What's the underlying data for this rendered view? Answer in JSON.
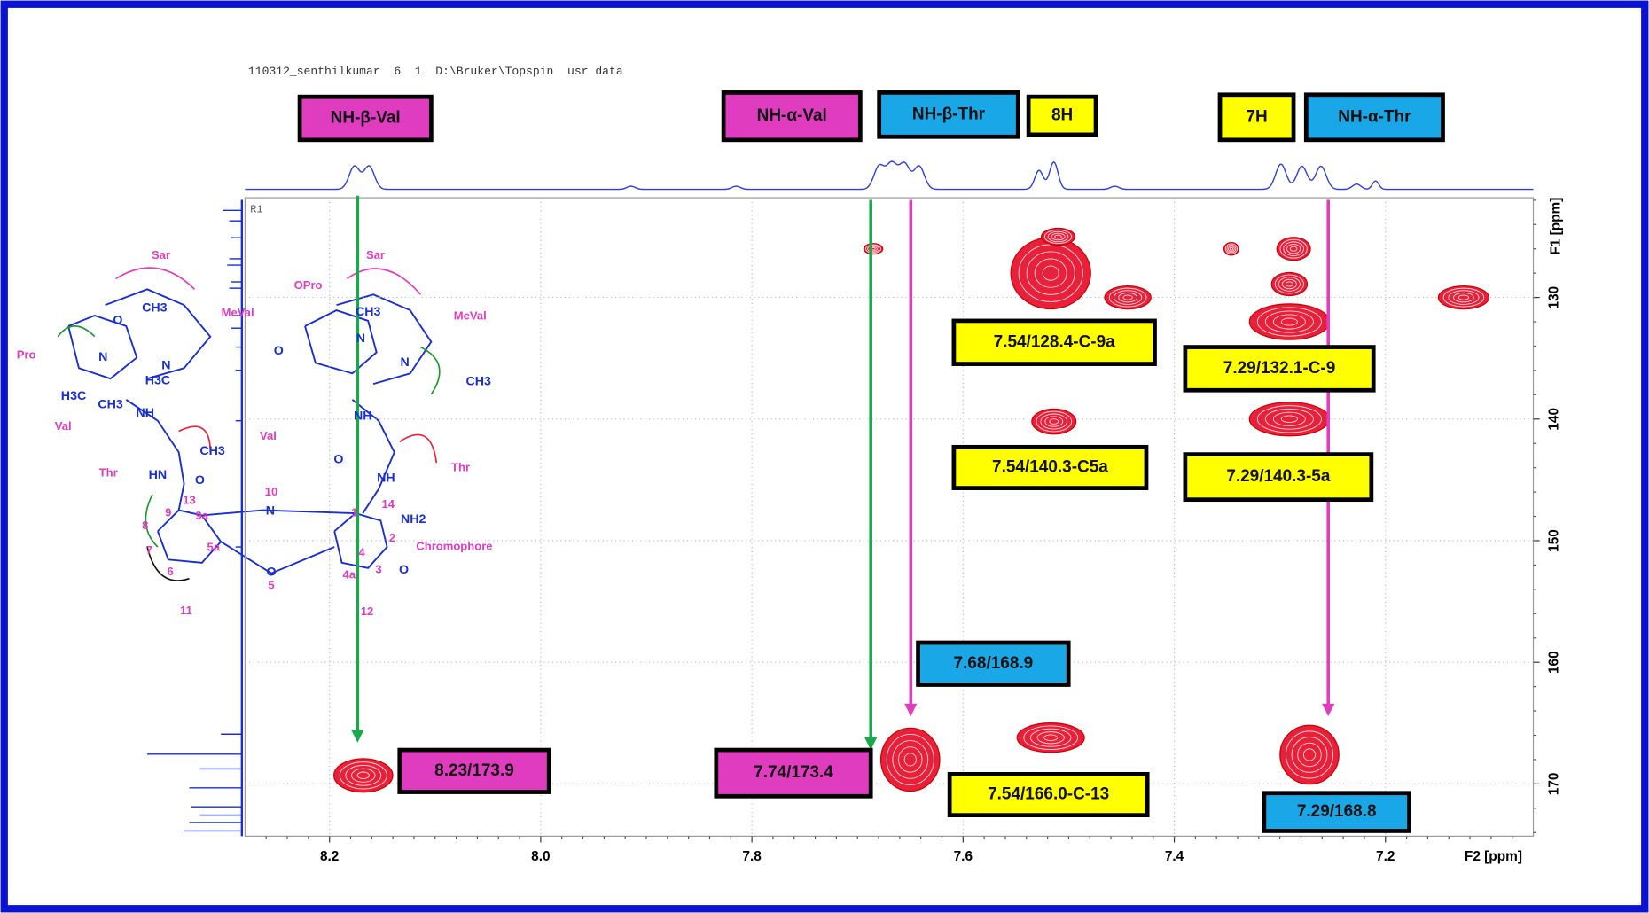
{
  "header": "110312_senthilkumar  6  1  D:\\Bruker\\Topspin  usr data",
  "chart_data": {
    "type": "contour",
    "region_label": "R1",
    "xlabel": "F2 [ppm]",
    "ylabel": "F1 [ppm]",
    "xlim": [
      8.28,
      7.06
    ],
    "ylim": [
      121.8,
      174.3
    ],
    "xticks": [
      8.2,
      {
        "value": 8,
        "label": "8.0"
      },
      7.8,
      7.6,
      7.4,
      7.2
    ],
    "yticks": [
      130,
      140,
      150,
      160,
      170
    ],
    "grid": true,
    "color": "#e8203a",
    "x": [
      8.168,
      7.65,
      7.517,
      7.272,
      7.517,
      7.51,
      7.444,
      7.514,
      7.346,
      7.287,
      7.291,
      7.291,
      7.291,
      7.126,
      7.685
    ],
    "values": [
      169.3,
      168,
      166.2,
      167.6,
      128,
      125,
      130,
      140.2,
      126,
      126,
      128.9,
      132,
      140,
      130,
      126
    ],
    "annotations": [
      {
        "text": "NH-β-Val",
        "color": "#e03cc0"
      },
      {
        "text": "NH-α-Val",
        "color": "#e03cc0"
      },
      {
        "text": "NH-β-Thr",
        "color": "#1aa7e8"
      },
      {
        "text": "8H",
        "color": "#ffff00"
      },
      {
        "text": "7H",
        "color": "#ffff00"
      },
      {
        "text": "NH-α-Thr",
        "color": "#1aa7e8"
      },
      {
        "text": "7.54/128.4-C-9a",
        "color": "#ffff00"
      },
      {
        "text": "7.29/132.1-C-9",
        "color": "#ffff00"
      },
      {
        "text": "7.54/140.3-C5a",
        "color": "#ffff00"
      },
      {
        "text": "7.29/140.3-5a",
        "color": "#ffff00"
      },
      {
        "text": "7.68/168.9",
        "color": "#1aa7e8"
      },
      {
        "text": "8.23/173.9",
        "color": "#e03cc0"
      },
      {
        "text": "7.74/173.4",
        "color": "#e03cc0"
      },
      {
        "text": "7.54/166.0-C-13",
        "color": "#ffff00"
      },
      {
        "text": "7.29/168.8",
        "color": "#1aa7e8"
      }
    ],
    "structure": {
      "residue_labels": [
        "Sar",
        "Pro",
        "Val",
        "Thr",
        "MeVal",
        "Sar",
        "OPro",
        "MeVal",
        "Val",
        "Thr",
        "Chromophore",
        "10",
        "9a",
        "13",
        "9",
        "8",
        "7",
        "5a",
        "6",
        "11",
        "5",
        "4a",
        "4",
        "3",
        "2",
        "1",
        "12",
        "14"
      ],
      "atom_labels": [
        "N",
        "O",
        "O",
        "NH2",
        "NH",
        "HN",
        "NH",
        "NH",
        "CH3",
        "CH3",
        "H3C",
        "H3C",
        "CH3",
        "CH3",
        "CH3",
        "N",
        "N",
        "N",
        "N",
        "O",
        "O",
        "O",
        "O"
      ]
    }
  }
}
